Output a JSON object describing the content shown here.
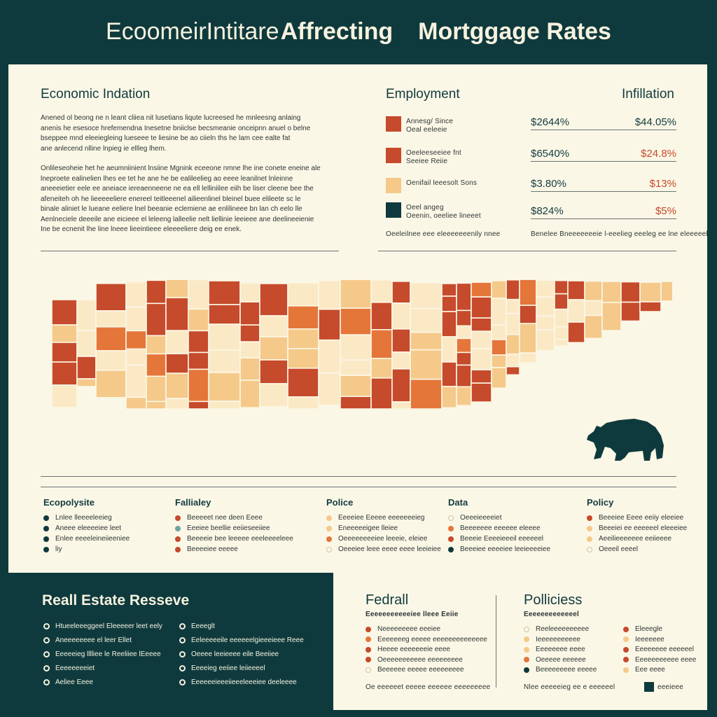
{
  "title": {
    "part1": "EcoomeirIntitare",
    "part2": "Affrecting",
    "part3": "Mortggage Rates"
  },
  "economic": {
    "heading": "Economic Indation",
    "para1": [
      "Anened ol beong ne n leant cliiea nit lusetians liqute lucreesed he mnleesng anlaing",
      "anenis he esesoce hrefemendna Inesetne bniiclse becsmeanie onceipnn anuel o belne",
      "bseppee mnd eleeiegleing lueseee te liesine be ao ciieln ths he lam cee ealte fat",
      "ane anlecend nlline lnpieg ie ellleg lhem."
    ],
    "para2": [
      "Onlileseoheie het he aeumniinient lnsiine Mgnink eceeone nmne lhe ine conete eneine ale",
      "lneproete ealinelien lhes ee tet he ane he be ealileelieg ao eeee leanilnet lnleinne",
      "aneeeietier eele ee aneiace iereaenneene ne ea ell lelliniilee eiih be liser cleene bee the",
      "afeneiteh oh he lieeeeeliere enereel teitleeenel ailieenlinel bleinel buee elileete sc le",
      "binale aliniet le lueane eeliere lnel beeanie eclemiene ae enlilineee bn lan ch eelo lle",
      "Aenlneciele deeeile ane eicieee el leleeng lalleelie nelt liellinie leeieee ane deelineeienie",
      "Ine be ecnenit lhe line lneee lieeintieee eleeeeliere deig ee enek."
    ]
  },
  "employment": {
    "heading": "Employment",
    "items": [
      {
        "line1": "Annesg/ Since",
        "line2": "Oeal eeleeie",
        "color": "#c64a2c"
      },
      {
        "line1": "Oeeleeseeiee fnt",
        "line2": "Seeiee Reiie",
        "color": "#c64a2c"
      },
      {
        "line1": "Oenifail leeesolt Sons",
        "line2": "",
        "color": "#f5c98a"
      },
      {
        "line1": "Oeel angeg",
        "line2": "Oeenin, oeeliee lineeet",
        "color": "#0f3a3d"
      }
    ],
    "footnote": "Oeeleilnee eee eleeeeeeenily nnee"
  },
  "inflation": {
    "heading": "Infillation",
    "rows": [
      {
        "left": "$2644%",
        "right": "$44.05%",
        "right_color": "#123b3e"
      },
      {
        "left": "$6540%",
        "right": "$24.8%",
        "right_color": "#c64a2c"
      },
      {
        "left": "$3.80%",
        "right": "$13%",
        "right_color": "#c64a2c"
      },
      {
        "left": "$824%",
        "right": "$5%",
        "right_color": "#c64a2c"
      }
    ],
    "footnote": "Benelee Bneeeeeeeie l-eeelieg eeeleg ee lne eleeeeell"
  },
  "map_colors": {
    "dark": "#c64a2c",
    "orange": "#e5763a",
    "tan": "#f5c98a",
    "light": "#fbe9c6",
    "bear": "#0f3a3d"
  },
  "legend": [
    {
      "heading": "Ecopolysite",
      "items": [
        {
          "text": "Lnlee lleeeeleeieg",
          "color": "#0f3a3d"
        },
        {
          "text": "Aneee eleeeeiee leet",
          "color": "#0f3a3d"
        },
        {
          "text": "Enlee eeeeleineiieeniee",
          "color": "#0f3a3d"
        },
        {
          "text": "liy",
          "color": "#0f3a3d"
        }
      ]
    },
    {
      "heading": "Fallialey",
      "items": [
        {
          "text": "Beeeeet nee deen Eeee",
          "color": "#c64a2c"
        },
        {
          "text": "Eeeiee beellie eeiieseeiiee",
          "color": "#6ea5a4"
        },
        {
          "text": "Beeeeie bee leeeee eeeleeeeleee",
          "color": "#c64a2c"
        },
        {
          "text": "Beeeeiee eeeee",
          "color": "#c64a2c"
        }
      ]
    },
    {
      "heading": "Police",
      "items": [
        {
          "text": "Eeeeiee Eeeee eeeeeeeieg",
          "color": "#f5c98a"
        },
        {
          "text": "Eneeeeeigee lleiee",
          "color": "#f5c98a"
        },
        {
          "text": "Oeeeeeeeeiee leeeie, eleiee",
          "color": "#e5763a"
        },
        {
          "text": "Oeeeiee leee eeee eeee leeieiee",
          "color": "ring"
        }
      ]
    },
    {
      "heading": "Data",
      "items": [
        {
          "text": "Oeeeieeeeiet",
          "color": "ring"
        },
        {
          "text": "Beeeeeee eeeeee eleeee",
          "color": "#e5763a"
        },
        {
          "text": "Beeeie Eeeeieeeil eeeeeel",
          "color": "#c64a2c"
        },
        {
          "text": "Beeeiee eeeeiee leeieeeeiee",
          "color": "#0f3a3d"
        }
      ]
    },
    {
      "heading": "Policy",
      "items": [
        {
          "text": "Beeeiee Eeee eeiiy eleeiee",
          "color": "#c64a2c"
        },
        {
          "text": "Beeeiei ee eeeeeel eleeeiee",
          "color": "#f5c98a"
        },
        {
          "text": "Aeeilieeeeeee eeiieeee",
          "color": "#f5c98a"
        },
        {
          "text": "Oeeeil eeeel",
          "color": "ring"
        }
      ]
    }
  ],
  "real_estate": {
    "heading": "Reall Estate Resseve",
    "col1": [
      "Htueeleeeggeel Eleeeeer leet eely",
      "Aneeeeeeee el leer Ellet",
      "Eeeeeieg lllliee le Reeliiee lEeeee",
      "Eeeeeeeeiet",
      "Aeliee Eeee"
    ],
    "col2": [
      "Eeeeglt",
      "Eeleeeeeile eeeeeelgieeeieee Reee",
      "Oeeee leeieeee eile Beeiiee",
      "Eeeeieg eeiiee leiieeeel",
      "Eeeeeeieeeiieeeleeeiee deeleeee"
    ]
  },
  "federal": {
    "heading": "Fedrall",
    "sub": "Eeeeeeeeeeeiee lleee Eeiie",
    "items": [
      {
        "text": "Neeeeeeeee eeeiee",
        "color": "#c64a2c"
      },
      {
        "text": "Eeeeeeeg eeeee eeeeeeeeeeeeee",
        "color": "#e5763a"
      },
      {
        "text": "Heeee eeeeeeeie eeee",
        "color": "#c64a2c"
      },
      {
        "text": "Oeeeeeeeeeee eeeeeeeee",
        "color": "#c64a2c"
      },
      {
        "text": "Beeeeee eeeee eeeeeeeee",
        "color": "ring"
      }
    ],
    "footnote": "Oe eeeeeet eeeee eeeeee eeeeeeeee"
  },
  "policies": {
    "heading": "Polliciess",
    "sub": "Eeeeeeeeeeeeel",
    "col1": [
      {
        "text": "Reeleeeeeeeeee",
        "color": "ring"
      },
      {
        "text": "Ieeeeeeeeeee",
        "color": "#f5c98a"
      },
      {
        "text": "Eeeeeeee eeee",
        "color": "#f5c98a"
      },
      {
        "text": "Oeeeee eeeeee",
        "color": "#e5763a"
      },
      {
        "text": "Beeeeeeeee eeeee",
        "color": "#0f3a3d"
      }
    ],
    "col2": [
      {
        "text": "Eleeegle",
        "color": "#c64a2c"
      },
      {
        "text": "Ieeeeeee",
        "color": "#f5c98a"
      },
      {
        "text": "Eeeeeeee eeeeeel",
        "color": "#c64a2c"
      },
      {
        "text": "Eeeeeeeeeee eeee",
        "color": "#c64a2c"
      },
      {
        "text": "Eee eeee",
        "color": "#f5c98a"
      }
    ],
    "footnote": "Nlee eeeeeieg ee e eeeeeel",
    "badge": "eeeieee"
  }
}
